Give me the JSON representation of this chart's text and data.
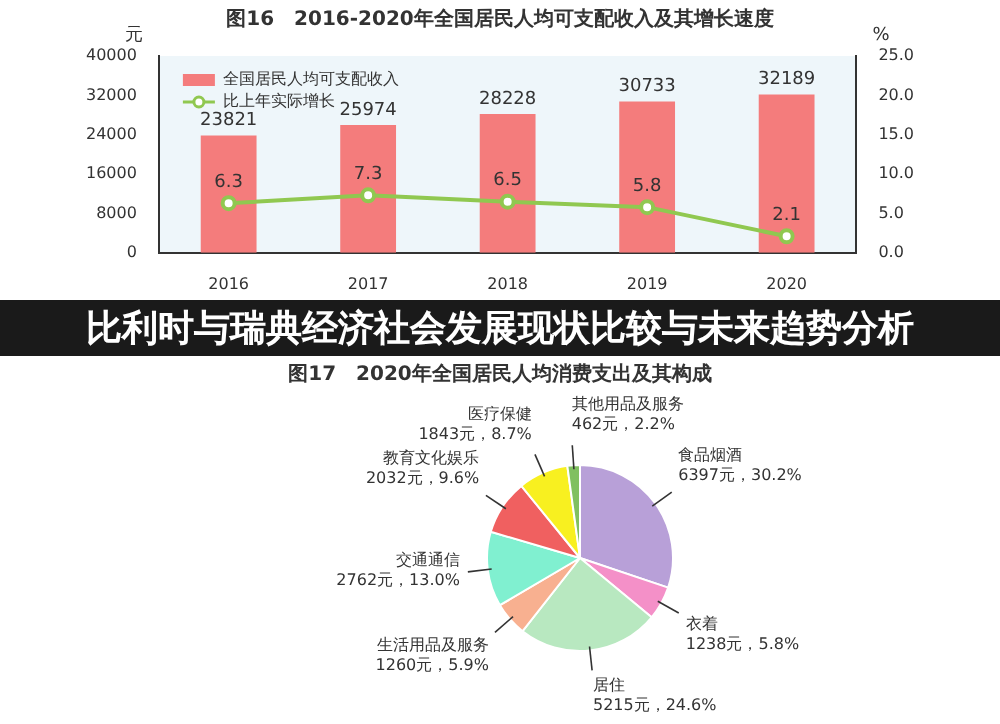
{
  "chart_data": [
    {
      "type": "bar",
      "title": "图16　2016-2020年全国居民人均可支配收入及其增长速度",
      "categories": [
        "2016",
        "2017",
        "2018",
        "2019",
        "2020"
      ],
      "ylabel": "元",
      "y2label": "%",
      "series": [
        {
          "name": "全国居民人均可支配收入",
          "type": "bar",
          "color": "#f47c7c",
          "values": [
            23821,
            25974,
            28228,
            30733,
            32189
          ]
        },
        {
          "name": "比上年实际增长",
          "type": "line",
          "axis": "y2",
          "color": "#90c850",
          "values": [
            6.3,
            7.3,
            6.5,
            5.8,
            2.1
          ]
        }
      ],
      "ylim": [
        0,
        40000
      ],
      "yticks": [
        0,
        8000,
        16000,
        24000,
        32000,
        40000
      ],
      "y2lim": [
        0,
        25
      ],
      "y2ticks": [
        {
          "value": 0,
          "label": "0.0"
        },
        {
          "value": 5,
          "label": "5.0"
        },
        {
          "value": 10,
          "label": "10.0"
        },
        {
          "value": 15,
          "label": "15.0"
        },
        {
          "value": 20,
          "label": "20.0"
        },
        {
          "value": 25,
          "label": "25.0"
        }
      ],
      "data_labels": true,
      "legend": "top left",
      "marker": "circle",
      "grid": false,
      "annotations": [
        "比利时与瑞典经济社会发展现状比较与未来趋势分析"
      ]
    },
    {
      "type": "pie",
      "title": "图17　2020年全国居民人均消费支出及其构成",
      "categories": [
        "食品烟酒",
        "衣着",
        "居住",
        "生活用品及服务",
        "交通通信",
        "教育文化娱乐",
        "医疗保健",
        "其他用品及服务"
      ],
      "values": [
        6397,
        1238,
        5215,
        1260,
        2762,
        2032,
        1843,
        462
      ],
      "colors": [
        "#b8a0d8",
        "#f490c8",
        "#b8e8c0",
        "#f8b090",
        "#80f0d0",
        "#f06060",
        "#f8f020",
        "#80c060"
      ],
      "value_labels": [
        "6397元，30.2%",
        "1238元，5.8%",
        "5215元，24.6%",
        "1260元，5.9%",
        "2762元，13.0%",
        "2032元，9.6%",
        "1843元，8.7%",
        "462元，2.2%"
      ],
      "legend": false
    }
  ]
}
